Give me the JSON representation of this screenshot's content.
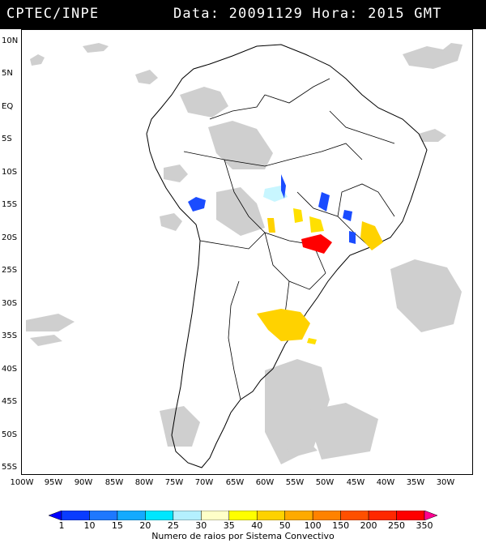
{
  "header": {
    "source": "CPTEC/INPE",
    "datetime": "Data: 20091129 Hora: 2015 GMT"
  },
  "lat_labels": [
    "10N",
    "5N",
    "EQ",
    "5S",
    "10S",
    "15S",
    "20S",
    "25S",
    "30S",
    "35S",
    "40S",
    "45S",
    "50S",
    "55S"
  ],
  "lon_labels": [
    "100W",
    "95W",
    "90W",
    "85W",
    "80W",
    "75W",
    "70W",
    "65W",
    "60W",
    "55W",
    "50W",
    "45W",
    "40W",
    "35W",
    "30W"
  ],
  "colorbar": {
    "values": [
      "1",
      "10",
      "15",
      "20",
      "25",
      "30",
      "35",
      "40",
      "50",
      "100",
      "150",
      "200",
      "250",
      "350"
    ],
    "colors": [
      "#0000ff",
      "#0a3cff",
      "#1e78ff",
      "#14aaff",
      "#00e6ff",
      "#b4f0ff",
      "#ffffc8",
      "#ffff00",
      "#ffd200",
      "#ffaa00",
      "#ff8200",
      "#ff5000",
      "#ff2800",
      "#ff0000",
      "#ff0090"
    ],
    "title": "Numero de raios por Sistema Convectivo"
  },
  "colors": {
    "background": "#ffffff",
    "header": "#000000",
    "cloud": "#c8c8c8",
    "border": "#000000"
  }
}
